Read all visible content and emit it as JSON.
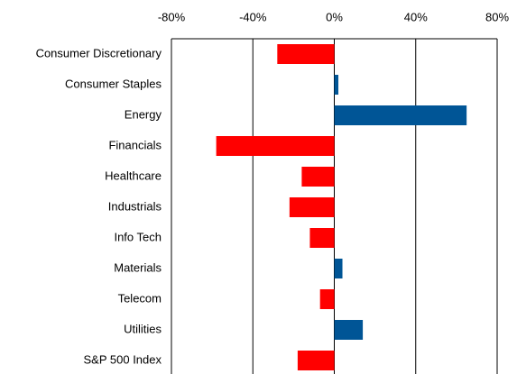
{
  "chart_data": {
    "type": "bar",
    "orientation": "horizontal",
    "categories": [
      "Consumer Discretionary",
      "Consumer Staples",
      "Energy",
      "Financials",
      "Healthcare",
      "Industrials",
      "Info Tech",
      "Materials",
      "Telecom",
      "Utilities",
      "S&P 500 Index"
    ],
    "values": [
      -28,
      2,
      65,
      -58,
      -16,
      -22,
      -12,
      4,
      -7,
      14,
      -18
    ],
    "colors": {
      "negative": "#ff0000",
      "positive": "#005596"
    },
    "xlim": [
      -80,
      80
    ],
    "xticks": [
      {
        "value": -80,
        "label": "-80%"
      },
      {
        "value": -40,
        "label": "-40%"
      },
      {
        "value": 0,
        "label": "0%"
      },
      {
        "value": 40,
        "label": "40%"
      },
      {
        "value": 80,
        "label": "80%"
      }
    ],
    "grid": true
  }
}
